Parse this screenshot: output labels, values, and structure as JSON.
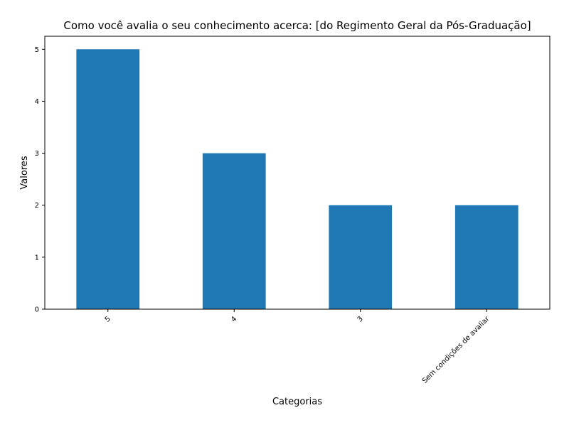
{
  "chart_data": {
    "type": "bar",
    "title": "Como você avalia o seu conhecimento acerca: [do Regimento Geral da Pós-Graduação]",
    "xlabel": "Categorias",
    "ylabel": "Valores",
    "categories": [
      "5",
      "4",
      "3",
      "Sem condições de avaliar"
    ],
    "values": [
      5,
      3,
      2,
      2
    ],
    "ylim": [
      0,
      5.25
    ],
    "yticks": [
      0,
      1,
      2,
      3,
      4,
      5
    ],
    "grid": false,
    "legend": "none",
    "bar_color": "#1f77b4"
  }
}
